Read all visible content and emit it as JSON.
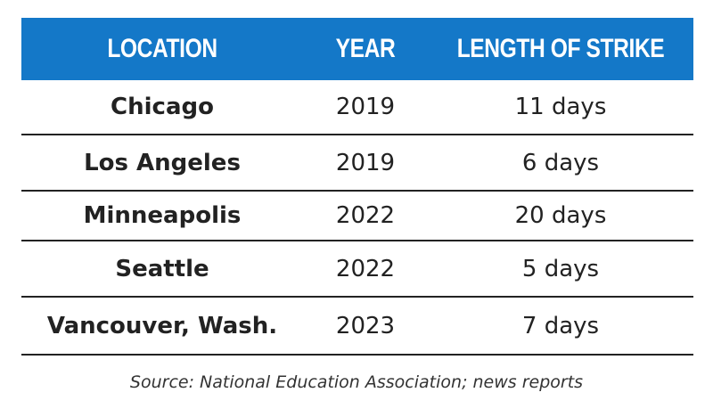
{
  "chart_data": {
    "type": "table",
    "columns": [
      "LOCATION",
      "YEAR",
      "LENGTH OF STRIKE"
    ],
    "rows": [
      [
        "Chicago",
        "2019",
        "11 days"
      ],
      [
        "Los Angeles",
        "2019",
        "6 days"
      ],
      [
        "Minneapolis",
        "2022",
        "20 days"
      ],
      [
        "Seattle",
        "2022",
        "5 days"
      ],
      [
        "Vancouver, Wash.",
        "2023",
        "7 days"
      ]
    ],
    "source": "Source: National Education Association; news reports"
  },
  "colors": {
    "header_background": "#1478c8",
    "header_text": "#ffffff",
    "rule": "#222222",
    "text": "#222222"
  }
}
